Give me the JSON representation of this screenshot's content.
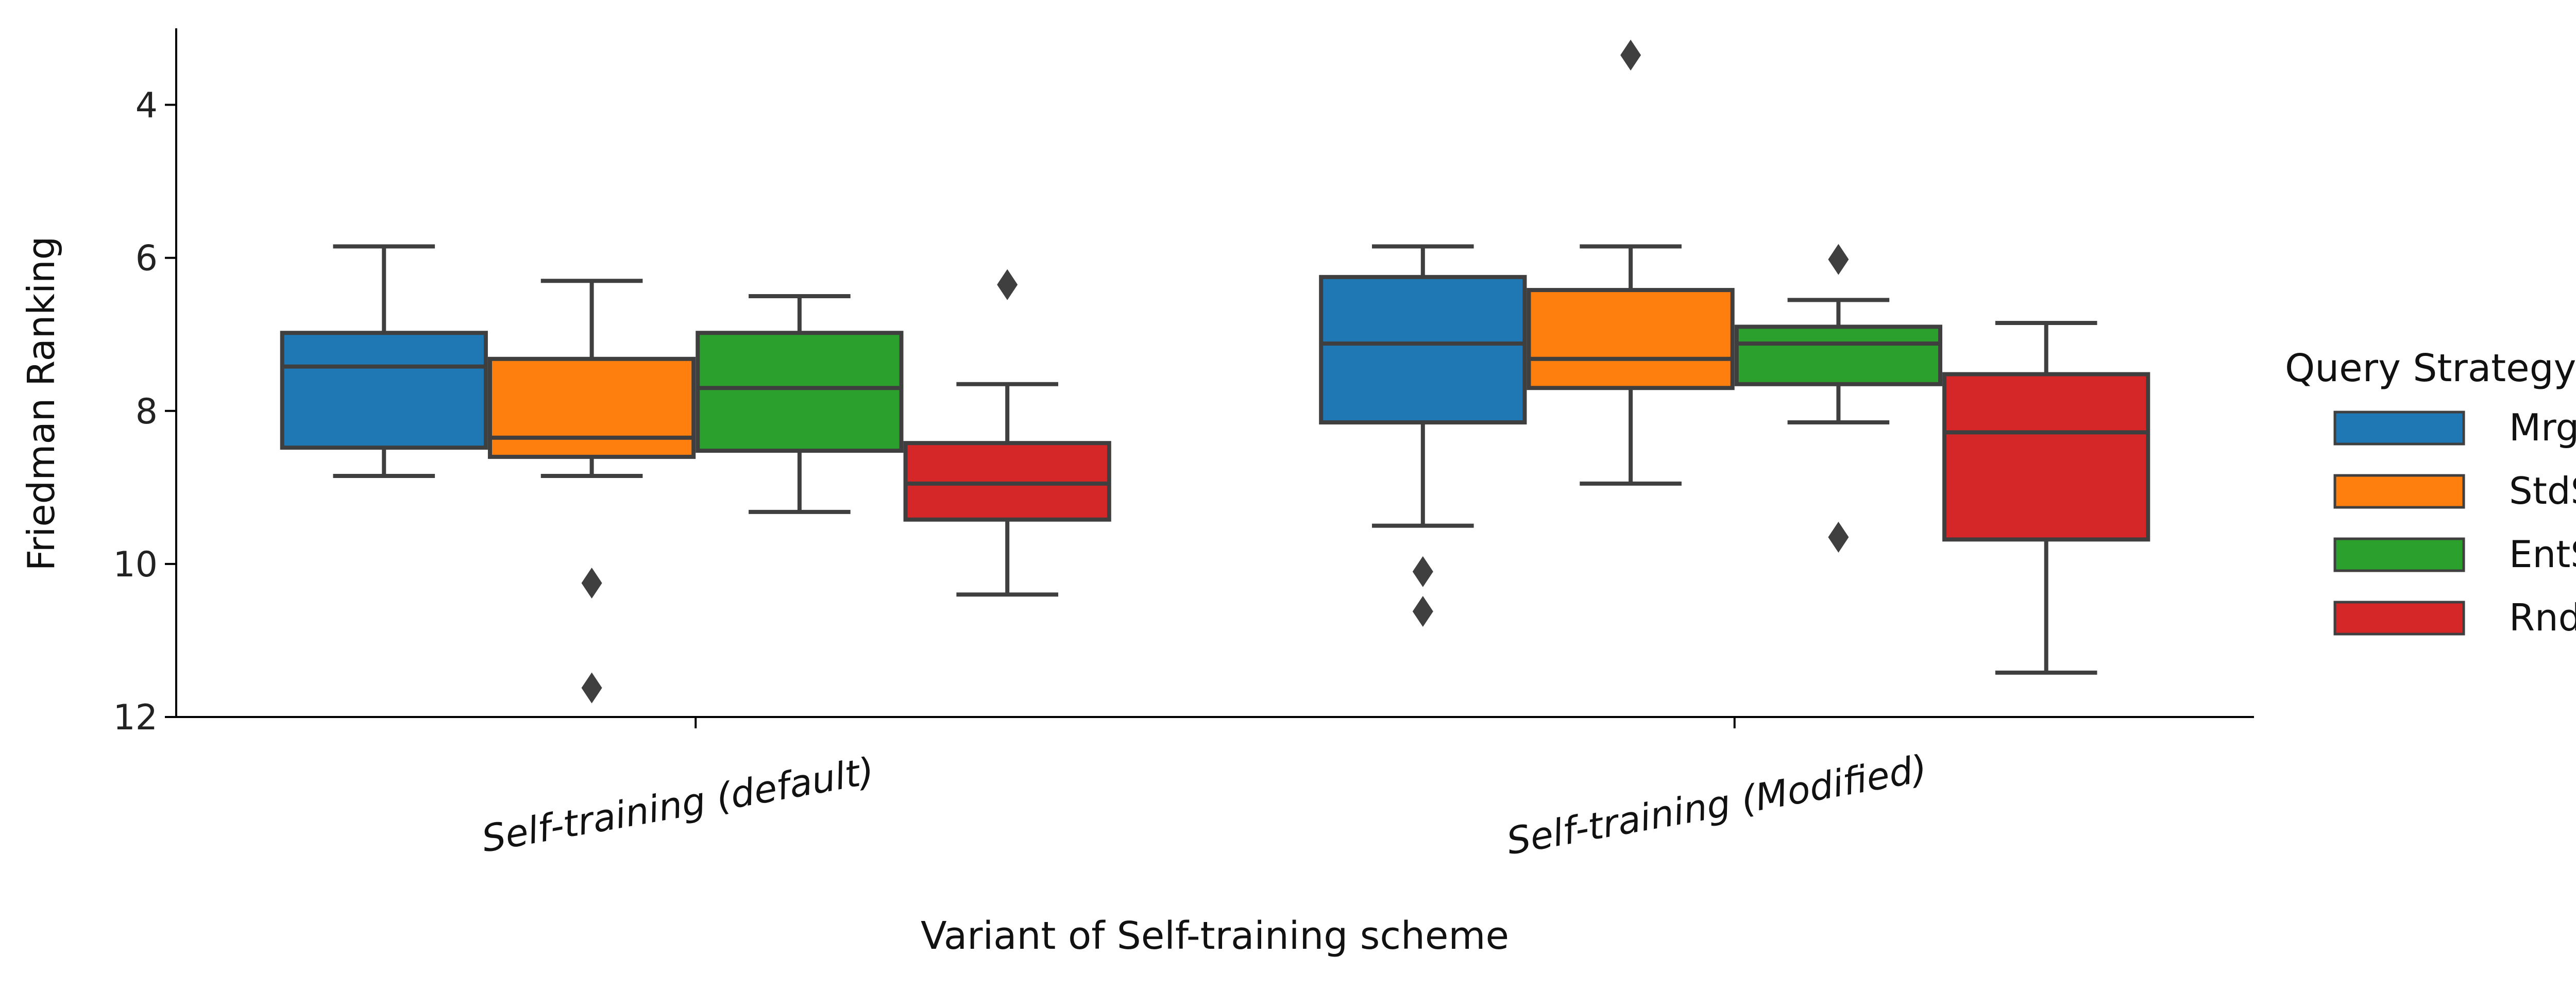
{
  "chart_data": {
    "type": "box",
    "title": "",
    "xlabel": "Variant of Self-training scheme",
    "ylabel": "Friedman Ranking",
    "y_axis_inverted": true,
    "ylim": [
      3.0,
      12.0
    ],
    "yticks": [
      4,
      6,
      8,
      10,
      12
    ],
    "grid": false,
    "legend": {
      "title": "Query Strategy",
      "placement": "right"
    },
    "categories": [
      "Self-training (default)",
      "Self-training (Modified)"
    ],
    "series": [
      {
        "name": "MrgS",
        "color": "#1f77b4",
        "boxes": [
          {
            "whisker_low": 5.85,
            "q1": 6.98,
            "median": 7.42,
            "q3": 8.48,
            "whisker_high": 8.85,
            "outliers": []
          },
          {
            "whisker_low": 5.85,
            "q1": 6.25,
            "median": 7.12,
            "q3": 8.15,
            "whisker_high": 9.5,
            "outliers": [
              10.1,
              10.62
            ]
          }
        ]
      },
      {
        "name": "StdS",
        "color": "#ff7f0e",
        "boxes": [
          {
            "whisker_low": 6.3,
            "q1": 7.32,
            "median": 8.35,
            "q3": 8.6,
            "whisker_high": 8.85,
            "outliers": [
              10.25,
              11.62
            ]
          },
          {
            "whisker_low": 5.85,
            "q1": 6.42,
            "median": 7.32,
            "q3": 7.7,
            "whisker_high": 8.95,
            "outliers": [
              3.35
            ]
          }
        ]
      },
      {
        "name": "EntS",
        "color": "#2ca02c",
        "boxes": [
          {
            "whisker_low": 6.5,
            "q1": 6.98,
            "median": 7.7,
            "q3": 8.52,
            "whisker_high": 9.32,
            "outliers": []
          },
          {
            "whisker_low": 6.55,
            "q1": 6.9,
            "median": 7.12,
            "q3": 7.65,
            "whisker_high": 8.15,
            "outliers": [
              6.02,
              9.65
            ]
          }
        ]
      },
      {
        "name": "RndS",
        "color": "#d62728",
        "boxes": [
          {
            "whisker_low": 7.65,
            "q1": 8.42,
            "median": 8.95,
            "q3": 9.42,
            "whisker_high": 10.4,
            "outliers": [
              6.35
            ]
          },
          {
            "whisker_low": 6.85,
            "q1": 7.52,
            "median": 8.28,
            "q3": 9.68,
            "whisker_high": 11.42,
            "outliers": []
          }
        ]
      }
    ]
  }
}
